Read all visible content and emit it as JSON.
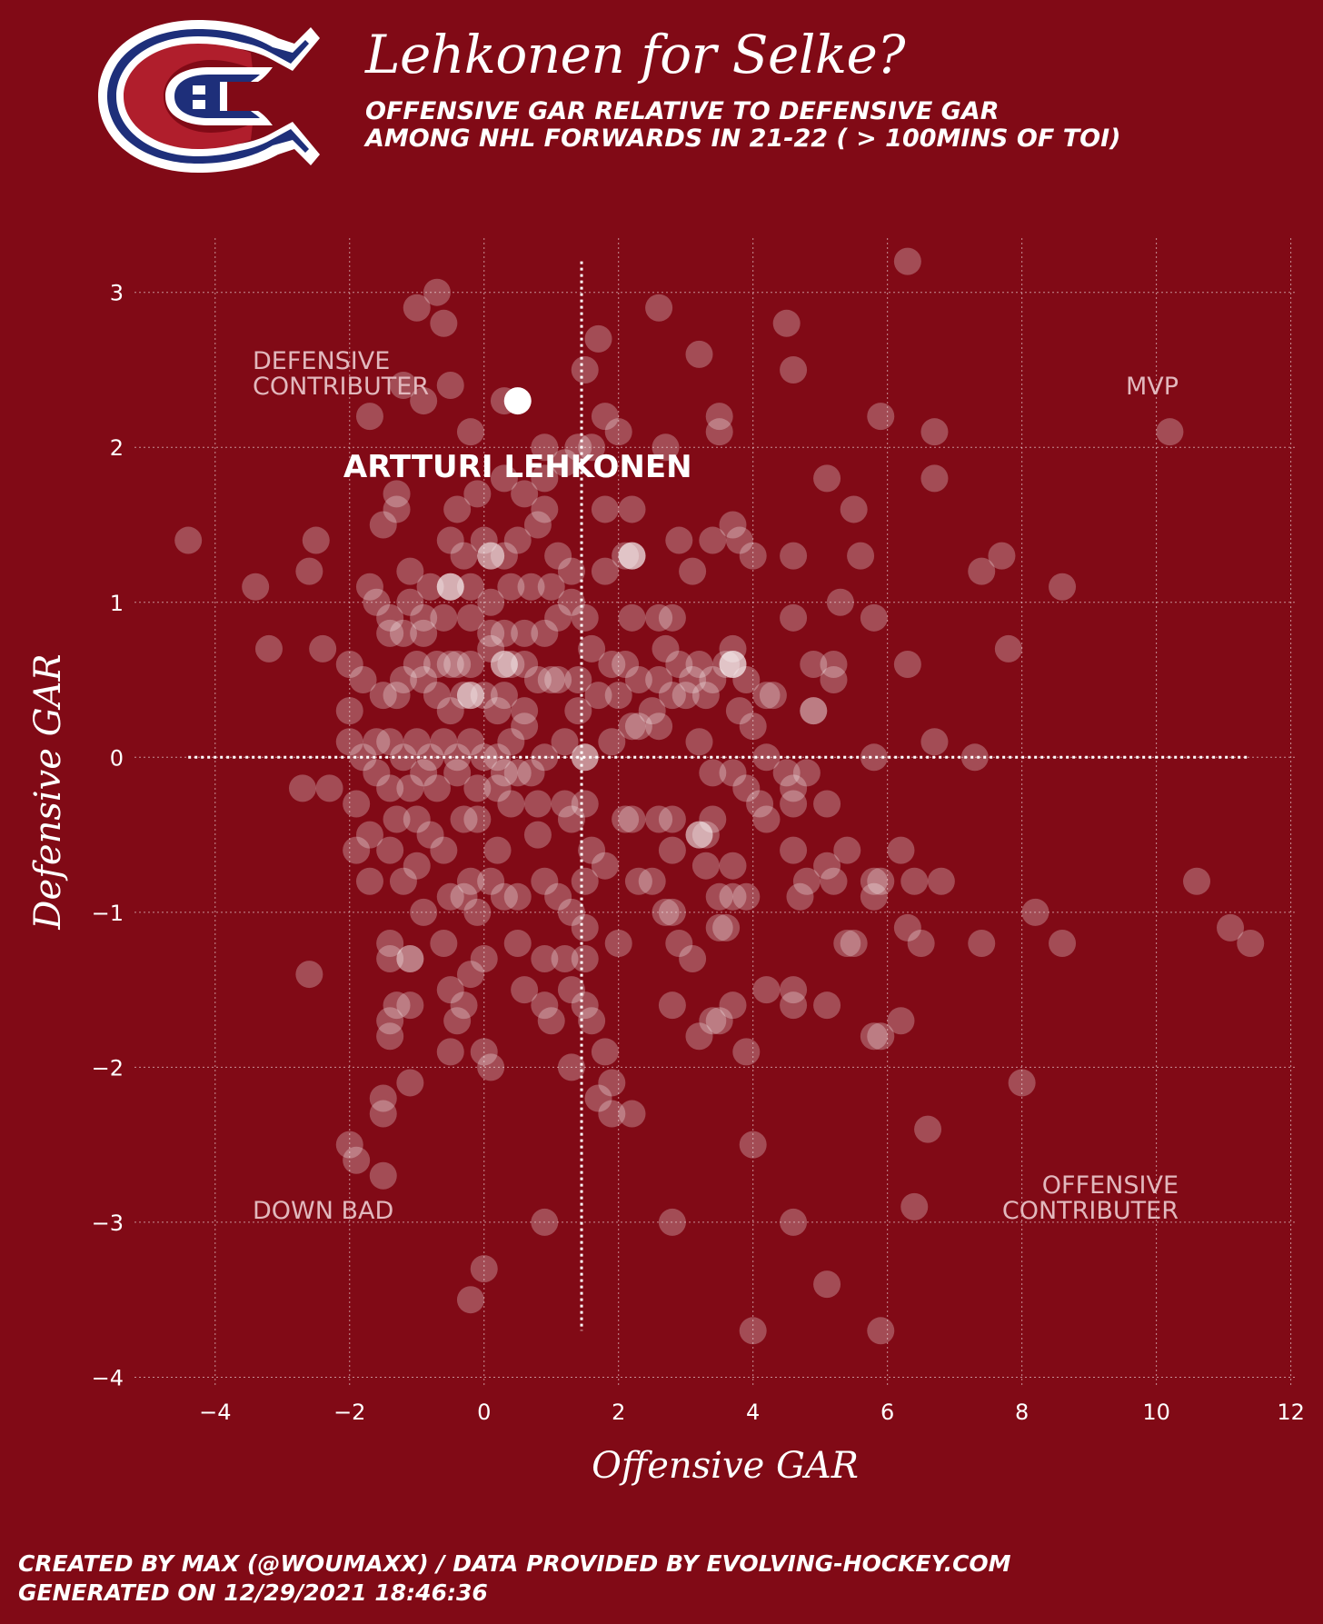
{
  "header": {
    "title": "Lehkonen for Selke?",
    "subtitle_line1": "OFFENSIVE GAR RELATIVE TO DEFENSIVE GAR",
    "subtitle_line2": "AMONG NHL FORWARDS IN 21-22 ( > 100MINS OF TOI)",
    "logo": "montreal-canadiens-logo"
  },
  "footer": {
    "line1": "CREATED BY MAX (@WOUMAXX) / DATA PROVIDED BY EVOLVING-HOCKEY.COM",
    "line2": "GENERATED ON 12/29/2021 18:46:36"
  },
  "colors": {
    "background": "#810a16",
    "points": "#ffffff",
    "quadrant_label": "#e2b8bd"
  },
  "chart_data": {
    "type": "scatter",
    "xlabel": "Offensive GAR",
    "ylabel": "Defensive GAR",
    "xlim": [
      -5.2,
      12.1
    ],
    "ylim": [
      -4.05,
      3.35
    ],
    "xticks": [
      -4,
      -2,
      0,
      2,
      4,
      6,
      8,
      10,
      12
    ],
    "yticks": [
      -4,
      -3,
      -2,
      -1,
      0,
      1,
      2,
      3
    ],
    "x_tick_labels": [
      "−4",
      "−2",
      "0",
      "2",
      "4",
      "6",
      "8",
      "10",
      "12"
    ],
    "y_tick_labels": [
      "−4",
      "−3",
      "−2",
      "−1",
      "0",
      "1",
      "2",
      "3"
    ],
    "grid": true,
    "mean_lines": {
      "x": 1.45,
      "y": 0.0
    },
    "quadrant_labels": {
      "top_left": "DEFENSIVE\nCONTRIBUTER",
      "top_right": "MVP",
      "bottom_left": "DOWN BAD",
      "bottom_right": "OFFENSIVE\nCONTRIBUTER"
    },
    "highlight": {
      "name": "ARTTURI LEHKONEN",
      "x": 0.5,
      "y": 2.3
    },
    "points": [
      [
        -4.4,
        1.4
      ],
      [
        -3.4,
        1.1
      ],
      [
        -3.2,
        0.7
      ],
      [
        -2.6,
        1.2
      ],
      [
        -2.5,
        1.4
      ],
      [
        -2.4,
        0.7
      ],
      [
        -2.0,
        0.6
      ],
      [
        -2.7,
        -0.2
      ],
      [
        -2.3,
        -0.2
      ],
      [
        -2.6,
        -1.4
      ],
      [
        -2.0,
        -2.5
      ],
      [
        -1.9,
        -2.6
      ],
      [
        -1.5,
        -2.7
      ],
      [
        -1.5,
        -2.2
      ],
      [
        -1.5,
        -2.3
      ],
      [
        -1.1,
        -2.1
      ],
      [
        -1.4,
        -1.8
      ],
      [
        -1.4,
        -1.7
      ],
      [
        -1.3,
        -1.6
      ],
      [
        -1.1,
        -1.6
      ],
      [
        -1.4,
        -1.3
      ],
      [
        -1.4,
        -1.2
      ],
      [
        -1.1,
        -1.3
      ],
      [
        -0.9,
        -1.0
      ],
      [
        -0.6,
        -1.2
      ],
      [
        -0.5,
        -1.5
      ],
      [
        -0.4,
        -1.7
      ],
      [
        -0.3,
        -1.6
      ],
      [
        -0.5,
        -1.9
      ],
      [
        0.0,
        -1.9
      ],
      [
        0.1,
        -2.0
      ],
      [
        0.0,
        -1.3
      ],
      [
        -0.2,
        -1.4
      ],
      [
        0.5,
        -1.2
      ],
      [
        0.6,
        -1.5
      ],
      [
        0.9,
        -1.6
      ],
      [
        1.0,
        -1.7
      ],
      [
        1.3,
        -1.5
      ],
      [
        1.3,
        -2.0
      ],
      [
        1.5,
        -1.6
      ],
      [
        1.6,
        -1.7
      ],
      [
        1.7,
        -2.2
      ],
      [
        1.8,
        -1.9
      ],
      [
        1.9,
        -2.1
      ],
      [
        1.9,
        -2.3
      ],
      [
        2.2,
        -2.3
      ],
      [
        1.5,
        -1.3
      ],
      [
        1.5,
        -1.1
      ],
      [
        1.2,
        -1.3
      ],
      [
        0.9,
        -1.3
      ],
      [
        2.0,
        -1.2
      ],
      [
        2.3,
        -0.8
      ],
      [
        1.8,
        -0.7
      ],
      [
        2.1,
        -0.4
      ],
      [
        2.6,
        -0.4
      ],
      [
        2.8,
        -0.4
      ],
      [
        2.8,
        -0.6
      ],
      [
        2.5,
        -0.8
      ],
      [
        2.7,
        -1.0
      ],
      [
        2.8,
        -1.0
      ],
      [
        2.9,
        -1.2
      ],
      [
        3.1,
        -1.3
      ],
      [
        2.8,
        -1.6
      ],
      [
        3.2,
        -1.8
      ],
      [
        3.4,
        -1.7
      ],
      [
        3.5,
        -1.7
      ],
      [
        3.7,
        -1.6
      ],
      [
        3.5,
        -1.1
      ],
      [
        3.6,
        -1.1
      ],
      [
        3.7,
        -0.9
      ],
      [
        3.5,
        -0.9
      ],
      [
        3.3,
        -0.7
      ],
      [
        3.3,
        -0.5
      ],
      [
        3.4,
        -0.4
      ],
      [
        3.7,
        -0.7
      ],
      [
        3.9,
        -0.9
      ],
      [
        4.1,
        -0.3
      ],
      [
        4.2,
        -0.4
      ],
      [
        3.9,
        -1.9
      ],
      [
        4.2,
        -1.5
      ],
      [
        4.6,
        -1.5
      ],
      [
        4.6,
        -1.6
      ],
      [
        5.1,
        -1.6
      ],
      [
        4.8,
        -0.8
      ],
      [
        4.6,
        -0.6
      ],
      [
        4.7,
        -0.9
      ],
      [
        5.1,
        -0.7
      ],
      [
        5.2,
        -0.8
      ],
      [
        5.4,
        -0.6
      ],
      [
        5.8,
        -0.8
      ],
      [
        5.9,
        -0.8
      ],
      [
        5.8,
        -0.9
      ],
      [
        5.4,
        -1.2
      ],
      [
        5.5,
        -1.2
      ],
      [
        5.8,
        -1.8
      ],
      [
        5.9,
        -1.8
      ],
      [
        6.2,
        -1.7
      ],
      [
        6.3,
        -1.1
      ],
      [
        6.5,
        -1.2
      ],
      [
        6.2,
        -0.6
      ],
      [
        6.4,
        -0.8
      ],
      [
        6.8,
        -0.8
      ],
      [
        6.6,
        -2.4
      ],
      [
        6.4,
        -2.9
      ],
      [
        7.4,
        -1.2
      ],
      [
        8.0,
        -2.1
      ],
      [
        8.2,
        -1.0
      ],
      [
        8.6,
        -1.2
      ],
      [
        10.6,
        -0.8
      ],
      [
        11.1,
        -1.1
      ],
      [
        11.4,
        -1.2
      ],
      [
        4.0,
        -2.5
      ],
      [
        4.6,
        -3.0
      ],
      [
        5.1,
        -3.4
      ],
      [
        4.0,
        -3.7
      ],
      [
        5.9,
        -3.7
      ],
      [
        2.8,
        -3.0
      ],
      [
        0.9,
        -3.0
      ],
      [
        0.0,
        -3.3
      ],
      [
        -0.2,
        -3.5
      ],
      [
        4.5,
        -0.1
      ],
      [
        4.6,
        -0.2
      ],
      [
        4.8,
        -0.1
      ],
      [
        4.6,
        -0.3
      ],
      [
        5.1,
        -0.3
      ],
      [
        4.2,
        0.0
      ],
      [
        5.8,
        0.0
      ],
      [
        7.3,
        0.0
      ],
      [
        6.7,
        0.1
      ],
      [
        6.3,
        0.6
      ],
      [
        5.2,
        0.5
      ],
      [
        5.2,
        0.6
      ],
      [
        4.9,
        0.6
      ],
      [
        4.9,
        0.3
      ],
      [
        4.2,
        0.4
      ],
      [
        4.3,
        0.4
      ],
      [
        3.9,
        0.5
      ],
      [
        3.8,
        0.3
      ],
      [
        3.7,
        0.6
      ],
      [
        3.7,
        0.7
      ],
      [
        3.6,
        0.6
      ],
      [
        3.4,
        0.5
      ],
      [
        3.3,
        0.4
      ],
      [
        3.1,
        0.5
      ],
      [
        3.2,
        0.6
      ],
      [
        2.9,
        0.6
      ],
      [
        2.8,
        0.4
      ],
      [
        2.6,
        0.5
      ],
      [
        2.7,
        0.7
      ],
      [
        2.8,
        0.9
      ],
      [
        2.6,
        0.9
      ],
      [
        2.2,
        0.9
      ],
      [
        2.1,
        0.6
      ],
      [
        2.2,
        0.2
      ],
      [
        2.6,
        0.2
      ],
      [
        2.5,
        0.3
      ],
      [
        3.2,
        0.1
      ],
      [
        3.4,
        -0.1
      ],
      [
        3.7,
        -0.1
      ],
      [
        3.9,
        -0.2
      ],
      [
        4.0,
        1.3
      ],
      [
        3.8,
        1.4
      ],
      [
        3.7,
        1.5
      ],
      [
        3.4,
        1.4
      ],
      [
        3.1,
        1.2
      ],
      [
        2.9,
        1.4
      ],
      [
        2.1,
        1.3
      ],
      [
        2.2,
        1.3
      ],
      [
        2.2,
        1.6
      ],
      [
        1.8,
        1.6
      ],
      [
        1.8,
        1.2
      ],
      [
        1.5,
        0.9
      ],
      [
        1.6,
        0.7
      ],
      [
        1.7,
        0.4
      ],
      [
        1.9,
        0.6
      ],
      [
        2.0,
        0.4
      ],
      [
        1.9,
        0.1
      ],
      [
        2.3,
        0.2
      ],
      [
        2.2,
        -0.4
      ],
      [
        1.6,
        -0.6
      ],
      [
        1.5,
        -0.3
      ],
      [
        1.3,
        -0.4
      ],
      [
        1.2,
        -0.3
      ],
      [
        0.8,
        -0.3
      ],
      [
        0.8,
        -0.5
      ],
      [
        0.9,
        -0.8
      ],
      [
        1.1,
        -0.9
      ],
      [
        1.3,
        -1.0
      ],
      [
        1.5,
        -0.8
      ],
      [
        0.5,
        -0.9
      ],
      [
        0.3,
        -0.9
      ],
      [
        0.2,
        -0.6
      ],
      [
        0.1,
        -0.8
      ],
      [
        -0.2,
        -0.8
      ],
      [
        -0.3,
        -0.9
      ],
      [
        -0.6,
        -0.6
      ],
      [
        -0.8,
        -0.5
      ],
      [
        -1.0,
        -0.4
      ],
      [
        -1.2,
        -0.8
      ],
      [
        -1.3,
        -0.4
      ],
      [
        -1.7,
        -0.5
      ],
      [
        -1.9,
        -0.6
      ],
      [
        -1.7,
        -0.8
      ],
      [
        -1.4,
        -0.6
      ],
      [
        -1.0,
        -0.7
      ],
      [
        -0.5,
        -0.9
      ],
      [
        -0.1,
        -1.0
      ],
      [
        -1.1,
        -1.3
      ],
      [
        -0.3,
        -0.4
      ],
      [
        -0.1,
        -0.4
      ],
      [
        0.2,
        -0.2
      ],
      [
        0.4,
        -0.3
      ],
      [
        0.7,
        -0.1
      ],
      [
        0.9,
        0.0
      ],
      [
        1.2,
        0.1
      ],
      [
        1.4,
        0.3
      ],
      [
        1.1,
        0.5
      ],
      [
        0.8,
        0.5
      ],
      [
        0.6,
        0.6
      ],
      [
        0.4,
        0.6
      ],
      [
        0.3,
        0.4
      ],
      [
        0.0,
        0.4
      ],
      [
        -0.3,
        0.4
      ],
      [
        -0.5,
        0.3
      ],
      [
        -0.7,
        0.4
      ],
      [
        -0.9,
        0.5
      ],
      [
        -1.2,
        0.5
      ],
      [
        -1.3,
        0.4
      ],
      [
        -1.5,
        0.4
      ],
      [
        -1.8,
        0.5
      ],
      [
        -2.0,
        0.3
      ],
      [
        -2.0,
        0.1
      ],
      [
        -1.8,
        0.0
      ],
      [
        -1.6,
        0.1
      ],
      [
        -1.4,
        0.1
      ],
      [
        -1.2,
        0.0
      ],
      [
        -1.0,
        0.1
      ],
      [
        -0.8,
        0.0
      ],
      [
        -0.6,
        0.1
      ],
      [
        -0.4,
        0.0
      ],
      [
        -0.2,
        0.1
      ],
      [
        0.0,
        0.0
      ],
      [
        0.2,
        0.0
      ],
      [
        0.4,
        0.1
      ],
      [
        0.6,
        0.2
      ],
      [
        0.5,
        -0.1
      ],
      [
        0.3,
        -0.1
      ],
      [
        -0.1,
        -0.2
      ],
      [
        -0.4,
        -0.1
      ],
      [
        -0.7,
        -0.2
      ],
      [
        -0.9,
        -0.1
      ],
      [
        -1.1,
        -0.2
      ],
      [
        -1.4,
        -0.2
      ],
      [
        -1.6,
        -0.1
      ],
      [
        -1.9,
        -0.3
      ],
      [
        -0.5,
        0.6
      ],
      [
        -0.2,
        0.6
      ],
      [
        0.1,
        0.7
      ],
      [
        0.3,
        0.8
      ],
      [
        0.6,
        0.8
      ],
      [
        0.9,
        0.8
      ],
      [
        1.1,
        0.9
      ],
      [
        1.3,
        1.0
      ],
      [
        1.0,
        1.1
      ],
      [
        0.7,
        1.1
      ],
      [
        0.4,
        1.1
      ],
      [
        0.1,
        1.0
      ],
      [
        -0.2,
        1.1
      ],
      [
        -0.5,
        1.1
      ],
      [
        -0.8,
        1.1
      ],
      [
        -1.1,
        1.0
      ],
      [
        -1.4,
        0.9
      ],
      [
        -1.6,
        1.0
      ],
      [
        -1.7,
        1.1
      ],
      [
        -1.4,
        0.8
      ],
      [
        -1.2,
        0.8
      ],
      [
        -0.9,
        0.8
      ],
      [
        -0.7,
        0.6
      ],
      [
        -1.0,
        0.6
      ],
      [
        -0.3,
        1.3
      ],
      [
        0.0,
        1.4
      ],
      [
        0.3,
        1.3
      ],
      [
        0.5,
        1.4
      ],
      [
        0.8,
        1.5
      ],
      [
        1.1,
        1.3
      ],
      [
        1.3,
        1.2
      ],
      [
        0.9,
        1.6
      ],
      [
        0.6,
        1.7
      ],
      [
        0.3,
        1.8
      ],
      [
        -0.1,
        1.7
      ],
      [
        -0.4,
        1.6
      ],
      [
        -0.5,
        1.4
      ],
      [
        -1.3,
        1.7
      ],
      [
        -1.3,
        1.6
      ],
      [
        -1.5,
        1.5
      ],
      [
        -1.1,
        1.2
      ],
      [
        -0.9,
        0.9
      ],
      [
        -0.6,
        0.9
      ],
      [
        -0.2,
        0.9
      ],
      [
        0.1,
        0.8
      ],
      [
        -1.7,
        2.2
      ],
      [
        -1.2,
        2.4
      ],
      [
        -0.9,
        2.3
      ],
      [
        -0.5,
        2.4
      ],
      [
        -0.2,
        2.1
      ],
      [
        0.3,
        2.3
      ],
      [
        0.9,
        2.0
      ],
      [
        1.2,
        1.9
      ],
      [
        1.4,
        2.0
      ],
      [
        1.6,
        2.0
      ],
      [
        1.8,
        2.2
      ],
      [
        2.0,
        2.1
      ],
      [
        2.7,
        2.0
      ],
      [
        1.5,
        2.5
      ],
      [
        1.7,
        2.7
      ],
      [
        0.9,
        1.8
      ],
      [
        -1.0,
        2.9
      ],
      [
        -0.7,
        3.0
      ],
      [
        -0.6,
        2.8
      ],
      [
        2.6,
        2.9
      ],
      [
        3.2,
        2.6
      ],
      [
        4.5,
        2.8
      ],
      [
        4.6,
        2.5
      ],
      [
        6.3,
        3.2
      ],
      [
        5.9,
        2.2
      ],
      [
        3.5,
        2.1
      ],
      [
        3.5,
        2.2
      ],
      [
        6.7,
        2.1
      ],
      [
        6.7,
        1.8
      ],
      [
        5.1,
        1.8
      ],
      [
        5.5,
        1.6
      ],
      [
        4.6,
        1.3
      ],
      [
        5.6,
        1.3
      ],
      [
        5.3,
        1.0
      ],
      [
        4.6,
        0.9
      ],
      [
        5.8,
        0.9
      ],
      [
        7.4,
        1.2
      ],
      [
        7.7,
        1.3
      ],
      [
        7.8,
        0.7
      ],
      [
        8.6,
        1.1
      ],
      [
        10.2,
        2.1
      ],
      [
        4.9,
        0.3
      ],
      [
        4.0,
        0.2
      ],
      [
        3.0,
        0.4
      ],
      [
        2.3,
        0.5
      ],
      [
        -0.4,
        0.6
      ],
      [
        0.2,
        0.3
      ],
      [
        0.6,
        0.3
      ],
      [
        1.0,
        0.5
      ],
      [
        1.4,
        0.5
      ]
    ],
    "bright_points": [
      [
        -0.5,
        1.1
      ],
      [
        0.1,
        1.3
      ],
      [
        -0.2,
        0.4
      ],
      [
        0.3,
        0.6
      ],
      [
        2.2,
        1.3
      ],
      [
        1.5,
        0.0
      ],
      [
        3.2,
        -0.5
      ],
      [
        3.7,
        0.6
      ]
    ]
  }
}
